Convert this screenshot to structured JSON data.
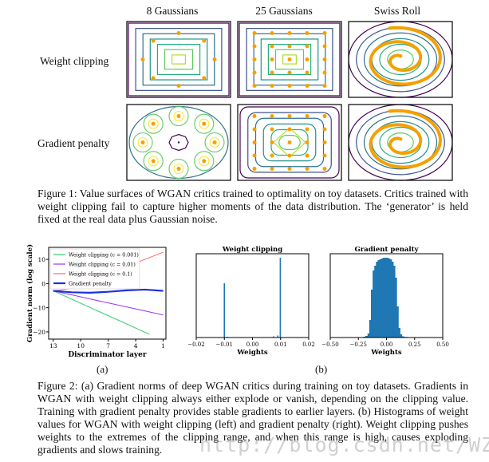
{
  "figure1": {
    "columns": [
      "8 Gaussians",
      "25 Gaussians",
      "Swiss Roll"
    ],
    "rows": [
      "Weight clipping",
      "Gradient penalty"
    ],
    "caption": "Figure 1:  Value surfaces of WGAN critics trained to optimality on toy datasets. Critics trained with weight clipping fail to capture higher moments of the data distribution. The ‘generator’ is held fixed at the real data plus Gaussian noise.",
    "point_color": "#f5a000"
  },
  "chart_data": [
    {
      "type": "line",
      "title": "",
      "xlabel": "Discriminator layer",
      "ylabel": "Gradient norm (log scale)",
      "xlim": [
        13.5,
        0.7
      ],
      "ylim": [
        -23,
        15
      ],
      "xticks": [
        "13",
        "10",
        "7",
        "4",
        "1"
      ],
      "yticks": [
        "10",
        "0",
        "−10",
        "−20"
      ],
      "legend_position": "top-left",
      "series": [
        {
          "name": "Weight clipping (c = 0.001)",
          "color": "#2ecc71",
          "x": [
            13,
            2.5
          ],
          "y": [
            -3,
            -21
          ]
        },
        {
          "name": "Weight clipping (c = 0.01)",
          "color": "#9b30ff",
          "x": [
            13,
            10,
            7,
            4,
            1
          ],
          "y": [
            -3,
            -5.5,
            -8,
            -10.5,
            -13
          ]
        },
        {
          "name": "Weight clipping (c = 0.1)",
          "color": "#ff6b6b",
          "x": [
            13,
            11,
            9,
            7,
            5,
            3,
            1
          ],
          "y": [
            -3,
            -2,
            1,
            4,
            7,
            10,
            13
          ]
        },
        {
          "name": "Gradient penalty",
          "color": "#1f2fe0",
          "x": [
            13,
            11,
            9,
            7,
            5,
            3,
            1
          ],
          "y": [
            -3,
            -3.6,
            -3.8,
            -3.4,
            -2.8,
            -2.5,
            -3
          ]
        }
      ],
      "sublabel": "(a)"
    },
    {
      "type": "bar",
      "title": "Weight clipping",
      "xlabel": "Weights",
      "xlim": [
        -0.02,
        0.02
      ],
      "xticks": [
        "−0.02",
        "−0.01",
        "0.00",
        "0.01",
        "0.02"
      ],
      "bins": [
        {
          "x": -0.01,
          "value": 0.68
        },
        {
          "x": -0.009,
          "value": 0.01
        },
        {
          "x": 0.0075,
          "value": 0.015
        },
        {
          "x": 0.009,
          "value": 0.025
        },
        {
          "x": 0.0099,
          "value": 1.0
        }
      ]
    },
    {
      "type": "bar",
      "title": "Gradient penalty",
      "xlabel": "Weights",
      "xlim": [
        -0.5,
        0.5
      ],
      "xticks": [
        "−0.50",
        "−0.25",
        "0.00",
        "0.25",
        "0.50"
      ],
      "bins": [
        {
          "x": -0.22,
          "value": 0.005
        },
        {
          "x": -0.19,
          "value": 0.01
        },
        {
          "x": -0.17,
          "value": 0.02
        },
        {
          "x": -0.15,
          "value": 0.05
        },
        {
          "x": -0.135,
          "value": 0.22
        },
        {
          "x": -0.12,
          "value": 0.6
        },
        {
          "x": -0.105,
          "value": 0.84
        },
        {
          "x": -0.09,
          "value": 0.9
        },
        {
          "x": -0.075,
          "value": 0.95
        },
        {
          "x": -0.06,
          "value": 0.97
        },
        {
          "x": -0.045,
          "value": 0.98
        },
        {
          "x": -0.03,
          "value": 0.99
        },
        {
          "x": -0.015,
          "value": 1.0
        },
        {
          "x": 0.0,
          "value": 1.0
        },
        {
          "x": 0.015,
          "value": 0.99
        },
        {
          "x": 0.03,
          "value": 0.98
        },
        {
          "x": 0.045,
          "value": 0.95
        },
        {
          "x": 0.06,
          "value": 0.9
        },
        {
          "x": 0.075,
          "value": 0.75
        },
        {
          "x": 0.09,
          "value": 0.39
        },
        {
          "x": 0.105,
          "value": 0.12
        },
        {
          "x": 0.12,
          "value": 0.04
        },
        {
          "x": 0.14,
          "value": 0.015
        },
        {
          "x": 0.17,
          "value": 0.007
        },
        {
          "x": 0.2,
          "value": 0.003
        }
      ]
    }
  ],
  "figure2": {
    "sublabel_b": "(b)",
    "caption": "Figure 2: (a) Gradient norms of deep WGAN critics during training on toy datasets. Gradients in WGAN with weight clipping always either explode or vanish, depending on the clipping value. Training with gradient penalty provides stable gradients to earlier layers. (b) Histograms of weight values for WGAN with weight clipping (left) and gradient penalty (right). Weight clipping pushes weights to the extremes of the clipping range, and when this range is high, causes exploding gradients and slows training."
  },
  "watermark": "http://blog.csdn.net/WZZ18191171661",
  "colors": {
    "bar": "#1f77b4"
  }
}
